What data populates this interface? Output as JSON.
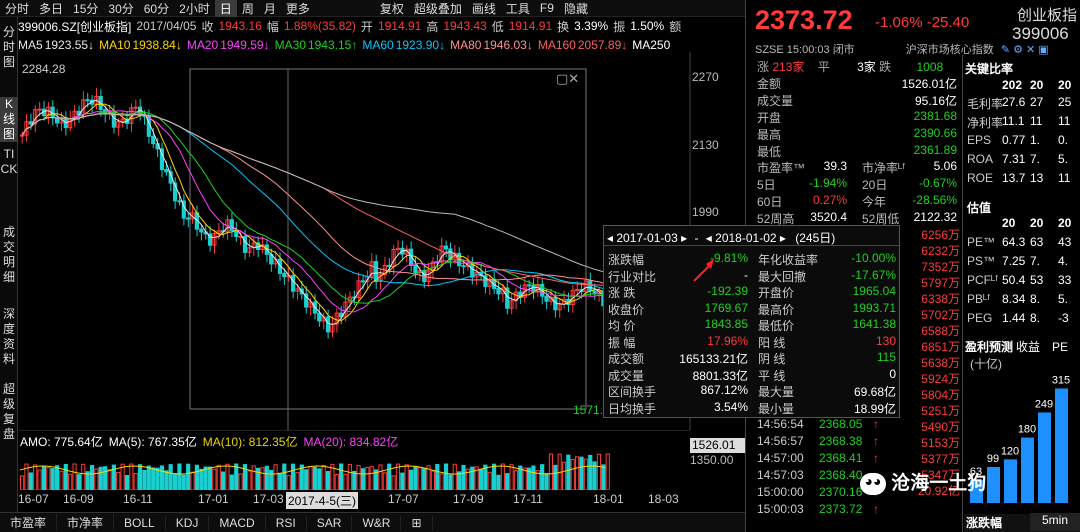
{
  "menu": [
    "分时",
    "多日",
    "15分",
    "30分",
    "60分",
    "2小时",
    "日",
    "周",
    "月",
    "更多",
    "复权",
    "超级叠加",
    "画线",
    "工具",
    "F9",
    "隐藏"
  ],
  "info": {
    "code": "399006.SZ[创业板指]",
    "date": "2017/04/05",
    "close_k": "收",
    "close": "1943.16",
    "chg_k": "幅",
    "chg": "1.88%(35.82)",
    "open_k": "开",
    "open": "1914.91",
    "high_k": "高",
    "high": "1943.43",
    "low_k": "低",
    "low": "1914.91",
    "turn_k": "换",
    "turn": "3.39%",
    "amp_k": "振",
    "amp": "1.50%",
    "amt_k": "额"
  },
  "ma": [
    {
      "l": "MA5",
      "v": "1923.55↓",
      "c": "#e8e8e8"
    },
    {
      "l": "MA10",
      "v": "1938.84↓",
      "c": "#ffd700"
    },
    {
      "l": "MA20",
      "v": "1949.59↓",
      "c": "#ff40ff"
    },
    {
      "l": "MA30",
      "v": "1943.15↑",
      "c": "#1fd11f"
    },
    {
      "l": "MA60",
      "v": "1923.90↓",
      "c": "#00c8ff"
    },
    {
      "l": "MA80",
      "v": "1946.03↓",
      "c": "#ff9090"
    },
    {
      "l": "MA160",
      "v": "2057.89↓",
      "c": "#ff6060"
    },
    {
      "l": "MA250",
      "v": "",
      "c": "#ffffff"
    }
  ],
  "left_tabs": [
    "分时图",
    "K线图",
    "TICK",
    "成交明细",
    "深度资料",
    "超级复盘"
  ],
  "axis": {
    "max_label": "2284.28",
    "min_label": "1571.4",
    "y_ticks": [
      "2270",
      "2130",
      "1990"
    ],
    "vol_right": "1526.01",
    "vol_tick": "1350.00"
  },
  "amo": {
    "amo": "AMO: 775.64亿",
    "ma5": "MA(5): 767.35亿",
    "ma10": "MA(10): 812.35亿",
    "ma20": "MA(20): 834.82亿"
  },
  "x_labels": [
    "16-07",
    "16-09",
    "16-11",
    "17-01",
    "17-03",
    "17-05",
    "17-07",
    "17-09",
    "17-11",
    "18-01",
    "18-03"
  ],
  "x_highlight": "2017-4-5(三)",
  "bottom_tabs": [
    "市盈率",
    "市净率",
    "BOLL",
    "KDJ",
    "MACD",
    "RSI",
    "SAR",
    "W&R",
    "⊞"
  ],
  "quote": {
    "price": "2373.72",
    "change": "-1.06%",
    "change_abs": "-25.40",
    "name": "创业板指",
    "code": "399006",
    "exch": "SZSE",
    "time": "15:00:03",
    "status": "闭市",
    "category": "沪深市场核心指数",
    "up_k": "涨",
    "up_v": "213家",
    "flat_k": "平",
    "flat_v": "3家",
    "down_k": "跌",
    "down_v": "1008",
    "rows": [
      {
        "k": "金额",
        "v": "1526.01亿",
        "c": "#fff"
      },
      {
        "k": "成交量",
        "v": "95.16亿",
        "c": "#fff"
      },
      {
        "k": "开盘",
        "v": "2381.68",
        "c": "#1fd11f"
      },
      {
        "k": "最高",
        "v": "2390.66",
        "c": "#1fd11f"
      },
      {
        "k": "最低",
        "v": "2361.89",
        "c": "#1fd11f"
      }
    ],
    "pe_k": "市盈率™",
    "pe_v": "39.3",
    "pb_k": "市净率ᴸᶠ",
    "pb_v": "5.06",
    "d5_k": "5日",
    "d5_v": "-1.94%",
    "d20_k": "20日",
    "d20_v": "-0.67%",
    "d60_k": "60日",
    "d60_v": "0.27%",
    "ytd_k": "今年",
    "ytd_v": "-28.56%",
    "w52h_k": "52周高",
    "w52h_v": "3520.4",
    "w52l_k": "52周低",
    "w52l_v": "2122.32"
  },
  "ratio": {
    "title": "关键比率",
    "header": [
      "202",
      "20",
      "20"
    ],
    "rows": [
      {
        "k": "毛利率",
        "v": [
          "27.6",
          "27",
          "25"
        ]
      },
      {
        "k": "净利率",
        "v": [
          "11.1",
          "11",
          "11"
        ]
      },
      {
        "k": "EPS",
        "v": [
          "0.77",
          "1.",
          "0."
        ]
      },
      {
        "k": "ROA",
        "v": [
          "7.31",
          "7.",
          "5."
        ]
      },
      {
        "k": "ROE",
        "v": [
          "13.7",
          "13",
          "11"
        ]
      }
    ],
    "val_title": "估值",
    "val_header": [
      "20",
      "20",
      "20"
    ],
    "val_rows": [
      {
        "k": "PE™",
        "v": [
          "64.3",
          "63",
          "43"
        ]
      },
      {
        "k": "PS™",
        "v": [
          "7.25",
          "7.",
          "4."
        ]
      },
      {
        "k": "PCFᴸᶠ",
        "v": [
          "50.4",
          "53",
          "33"
        ]
      },
      {
        "k": "PBᴸᶠ",
        "v": [
          "8.34",
          "8.",
          "5."
        ]
      },
      {
        "k": "PEG",
        "v": [
          "1.44",
          "8.",
          "-3"
        ]
      }
    ],
    "forecast_title": "盈利预测",
    "forecast_sub": "(十亿)",
    "forecast_k": "收益",
    "forecast_pe": "PE",
    "bars": [
      {
        "v": 63
      },
      {
        "v": 99
      },
      {
        "v": 120
      },
      {
        "v": 180
      },
      {
        "v": 249
      },
      {
        "v": 315
      }
    ],
    "bar_years": "2017 2018 2019 2020 2021 2022E",
    "footer": "涨跌幅",
    "period": "5min"
  },
  "popup": {
    "from": "2017-01-03",
    "to": "2018-01-02",
    "days": "(245日)",
    "rows": [
      {
        "k": "涨跌幅",
        "v": "-9.81%",
        "vc": "#1fd11f",
        "k2": "年化收益率",
        "v2": "-10.00%",
        "v2c": "#1fd11f"
      },
      {
        "k": "行业对比",
        "v": "-",
        "vc": "#fff",
        "k2": "最大回撤",
        "v2": "-17.67%",
        "v2c": "#1fd11f"
      },
      {
        "k": "涨 跌",
        "v": "-192.39",
        "vc": "#1fd11f",
        "k2": "开盘价",
        "v2": "1965.04",
        "v2c": "#1fd11f"
      },
      {
        "k": "收盘价",
        "v": "1769.67",
        "vc": "#1fd11f",
        "k2": "最高价",
        "v2": "1993.71",
        "v2c": "#1fd11f"
      },
      {
        "k": "均 价",
        "v": "1843.85",
        "vc": "#1fd11f",
        "k2": "最低价",
        "v2": "1641.38",
        "v2c": "#1fd11f"
      },
      {
        "k": "振 幅",
        "v": "17.96%",
        "vc": "#ff3b3b",
        "k2": "阳 线",
        "v2": "130",
        "v2c": "#ff3b3b"
      },
      {
        "k": "成交额",
        "v": "165133.21亿",
        "vc": "#fff",
        "k2": "阴 线",
        "v2": "115",
        "v2c": "#1fd11f"
      },
      {
        "k": "成交量",
        "v": "8801.33亿",
        "vc": "#fff",
        "k2": "平 线",
        "v2": "0",
        "v2c": "#fff"
      },
      {
        "k": "区间换手",
        "v": "867.12%",
        "vc": "#fff",
        "k2": "最大量",
        "v2": "69.68亿",
        "v2c": "#fff"
      },
      {
        "k": "日均换手",
        "v": "3.54%",
        "vc": "#fff",
        "k2": "最小量",
        "v2": "18.99亿",
        "v2c": "#fff"
      }
    ]
  },
  "right_col": [
    "6256万",
    "6232万",
    "7352万",
    "5797万",
    "6338万",
    "5702万",
    "6588万",
    "6851万",
    "5638万",
    "5924万",
    "5804万",
    "5251万",
    "5490万",
    "5153万",
    "5377万",
    "5347万",
    "20.92亿"
  ],
  "ticks": [
    {
      "t": "14:56:54",
      "p": "2368.05",
      "a": "↑"
    },
    {
      "t": "14:56:57",
      "p": "2368.38",
      "a": "↑"
    },
    {
      "t": "14:57:00",
      "p": "2368.41",
      "a": "↑"
    },
    {
      "t": "14:57:03",
      "p": "2368.40",
      "a": ""
    },
    {
      "t": "15:00:00",
      "p": "2370.16",
      "a": "↑"
    },
    {
      "t": "15:00:03",
      "p": "2373.72",
      "a": "↑"
    }
  ],
  "watermark": "沧海一土狗"
}
